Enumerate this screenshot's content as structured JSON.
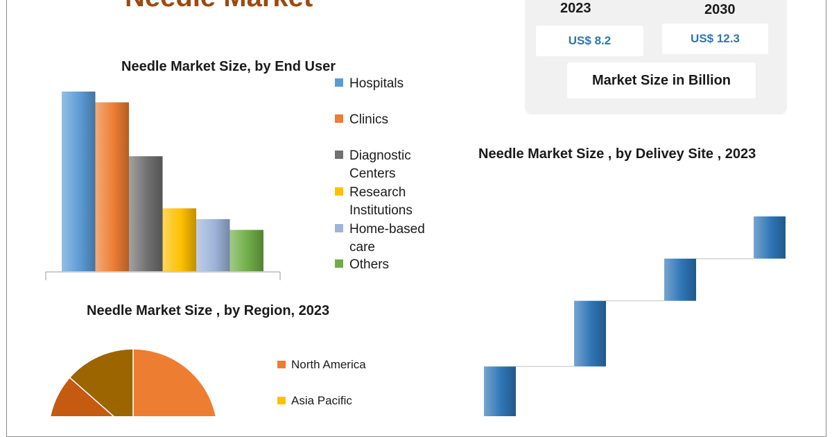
{
  "page": {
    "title": "Needle Market"
  },
  "market_size": {
    "years": [
      "2023",
      "2030"
    ],
    "values": [
      "US$ 8.2",
      "US$ 12.3"
    ],
    "caption": "Market Size in Billion"
  },
  "colors": {
    "title": "#9b4a12",
    "value_text": "#2e75b6",
    "panel": "#f1f1f1"
  },
  "chart_data": [
    {
      "type": "bar",
      "title": "Needle Market Size, by End User",
      "categories": [
        "Hospitals",
        "Clinics",
        "Diagnostic Centers",
        "Research Institutions",
        "Home-based care",
        "Others"
      ],
      "colors": [
        "#5b9bd5",
        "#ed7d31",
        "#707070",
        "#ffc000",
        "#9db4d9",
        "#70ad47"
      ],
      "values": [
        100,
        94,
        64,
        35,
        29,
        23
      ],
      "ylim": [
        0,
        100
      ],
      "legend": "right",
      "axis_values_shown": false
    },
    {
      "type": "pie",
      "title": "Needle Market Size , by Region, 2023",
      "labels": [
        "North America",
        "Asia Pacific"
      ],
      "colors": [
        "#ed7d31",
        "#ffc000"
      ],
      "visible_slices": [
        {
          "label": "North America",
          "color": "#ed7d31",
          "share": 0.25
        },
        {
          "color": "#9c6500",
          "share": 0.135
        },
        {
          "color": "#c55a11",
          "share": 0.115
        }
      ],
      "legend": "right"
    },
    {
      "type": "bar",
      "subtype": "waterfall",
      "title": "Needle Market Size , by Delivey Site , 2023",
      "colors": [
        "#5b9bd5",
        "#2e75b6"
      ],
      "steps": [
        {
          "low": 0,
          "high": 36
        },
        {
          "low": 36,
          "high": 64
        },
        {
          "low": 64,
          "high": 82
        },
        {
          "low": 82,
          "high": 100
        }
      ],
      "ylim": [
        0,
        100
      ],
      "legend": "none"
    }
  ]
}
